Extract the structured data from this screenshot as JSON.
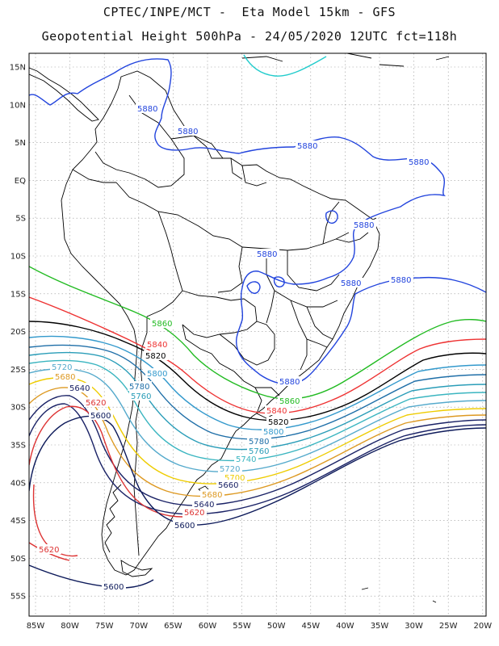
{
  "header": {
    "line1": "CPTEC/INPE/MCT -  Eta Model 15km - GFS",
    "line2": "Geopotential Height 500hPa - 24/05/2020 12UTC fct=118h"
  },
  "axes": {
    "lat_labels": [
      "15N",
      "10N",
      "5N",
      "EQ",
      "5S",
      "10S",
      "15S",
      "20S",
      "25S",
      "30S",
      "35S",
      "40S",
      "45S",
      "50S",
      "55S"
    ],
    "lon_labels": [
      "85W",
      "80W",
      "75W",
      "70W",
      "65W",
      "60W",
      "55W",
      "50W",
      "45W",
      "40W",
      "35W",
      "30W",
      "25W",
      "20W"
    ]
  },
  "contours": [
    {
      "value": "5880",
      "color": "#2244dd"
    },
    {
      "value": "5860",
      "color": "#22bb22"
    },
    {
      "value": "5840",
      "color": "#ee3333"
    },
    {
      "value": "5820",
      "color": "#000000"
    },
    {
      "value": "5800",
      "color": "#3399cc"
    },
    {
      "value": "5780",
      "color": "#1f6fa8"
    },
    {
      "value": "5760",
      "color": "#2a9db8"
    },
    {
      "value": "5740",
      "color": "#3ab5c0"
    },
    {
      "value": "5720",
      "color": "#55aacc"
    },
    {
      "value": "5700",
      "color": "#eecc00"
    },
    {
      "value": "5680",
      "color": "#dd9922"
    },
    {
      "value": "5660",
      "color": "#1a2266"
    },
    {
      "value": "5640",
      "color": "#1a2266"
    },
    {
      "value": "5620",
      "color": "#dd3333"
    },
    {
      "value": "5600",
      "color": "#0d1a5a"
    }
  ],
  "colors": {
    "frame": "#000000",
    "grid": "#999999",
    "coast": "#000000",
    "cyan_contour": "#22cccc"
  }
}
